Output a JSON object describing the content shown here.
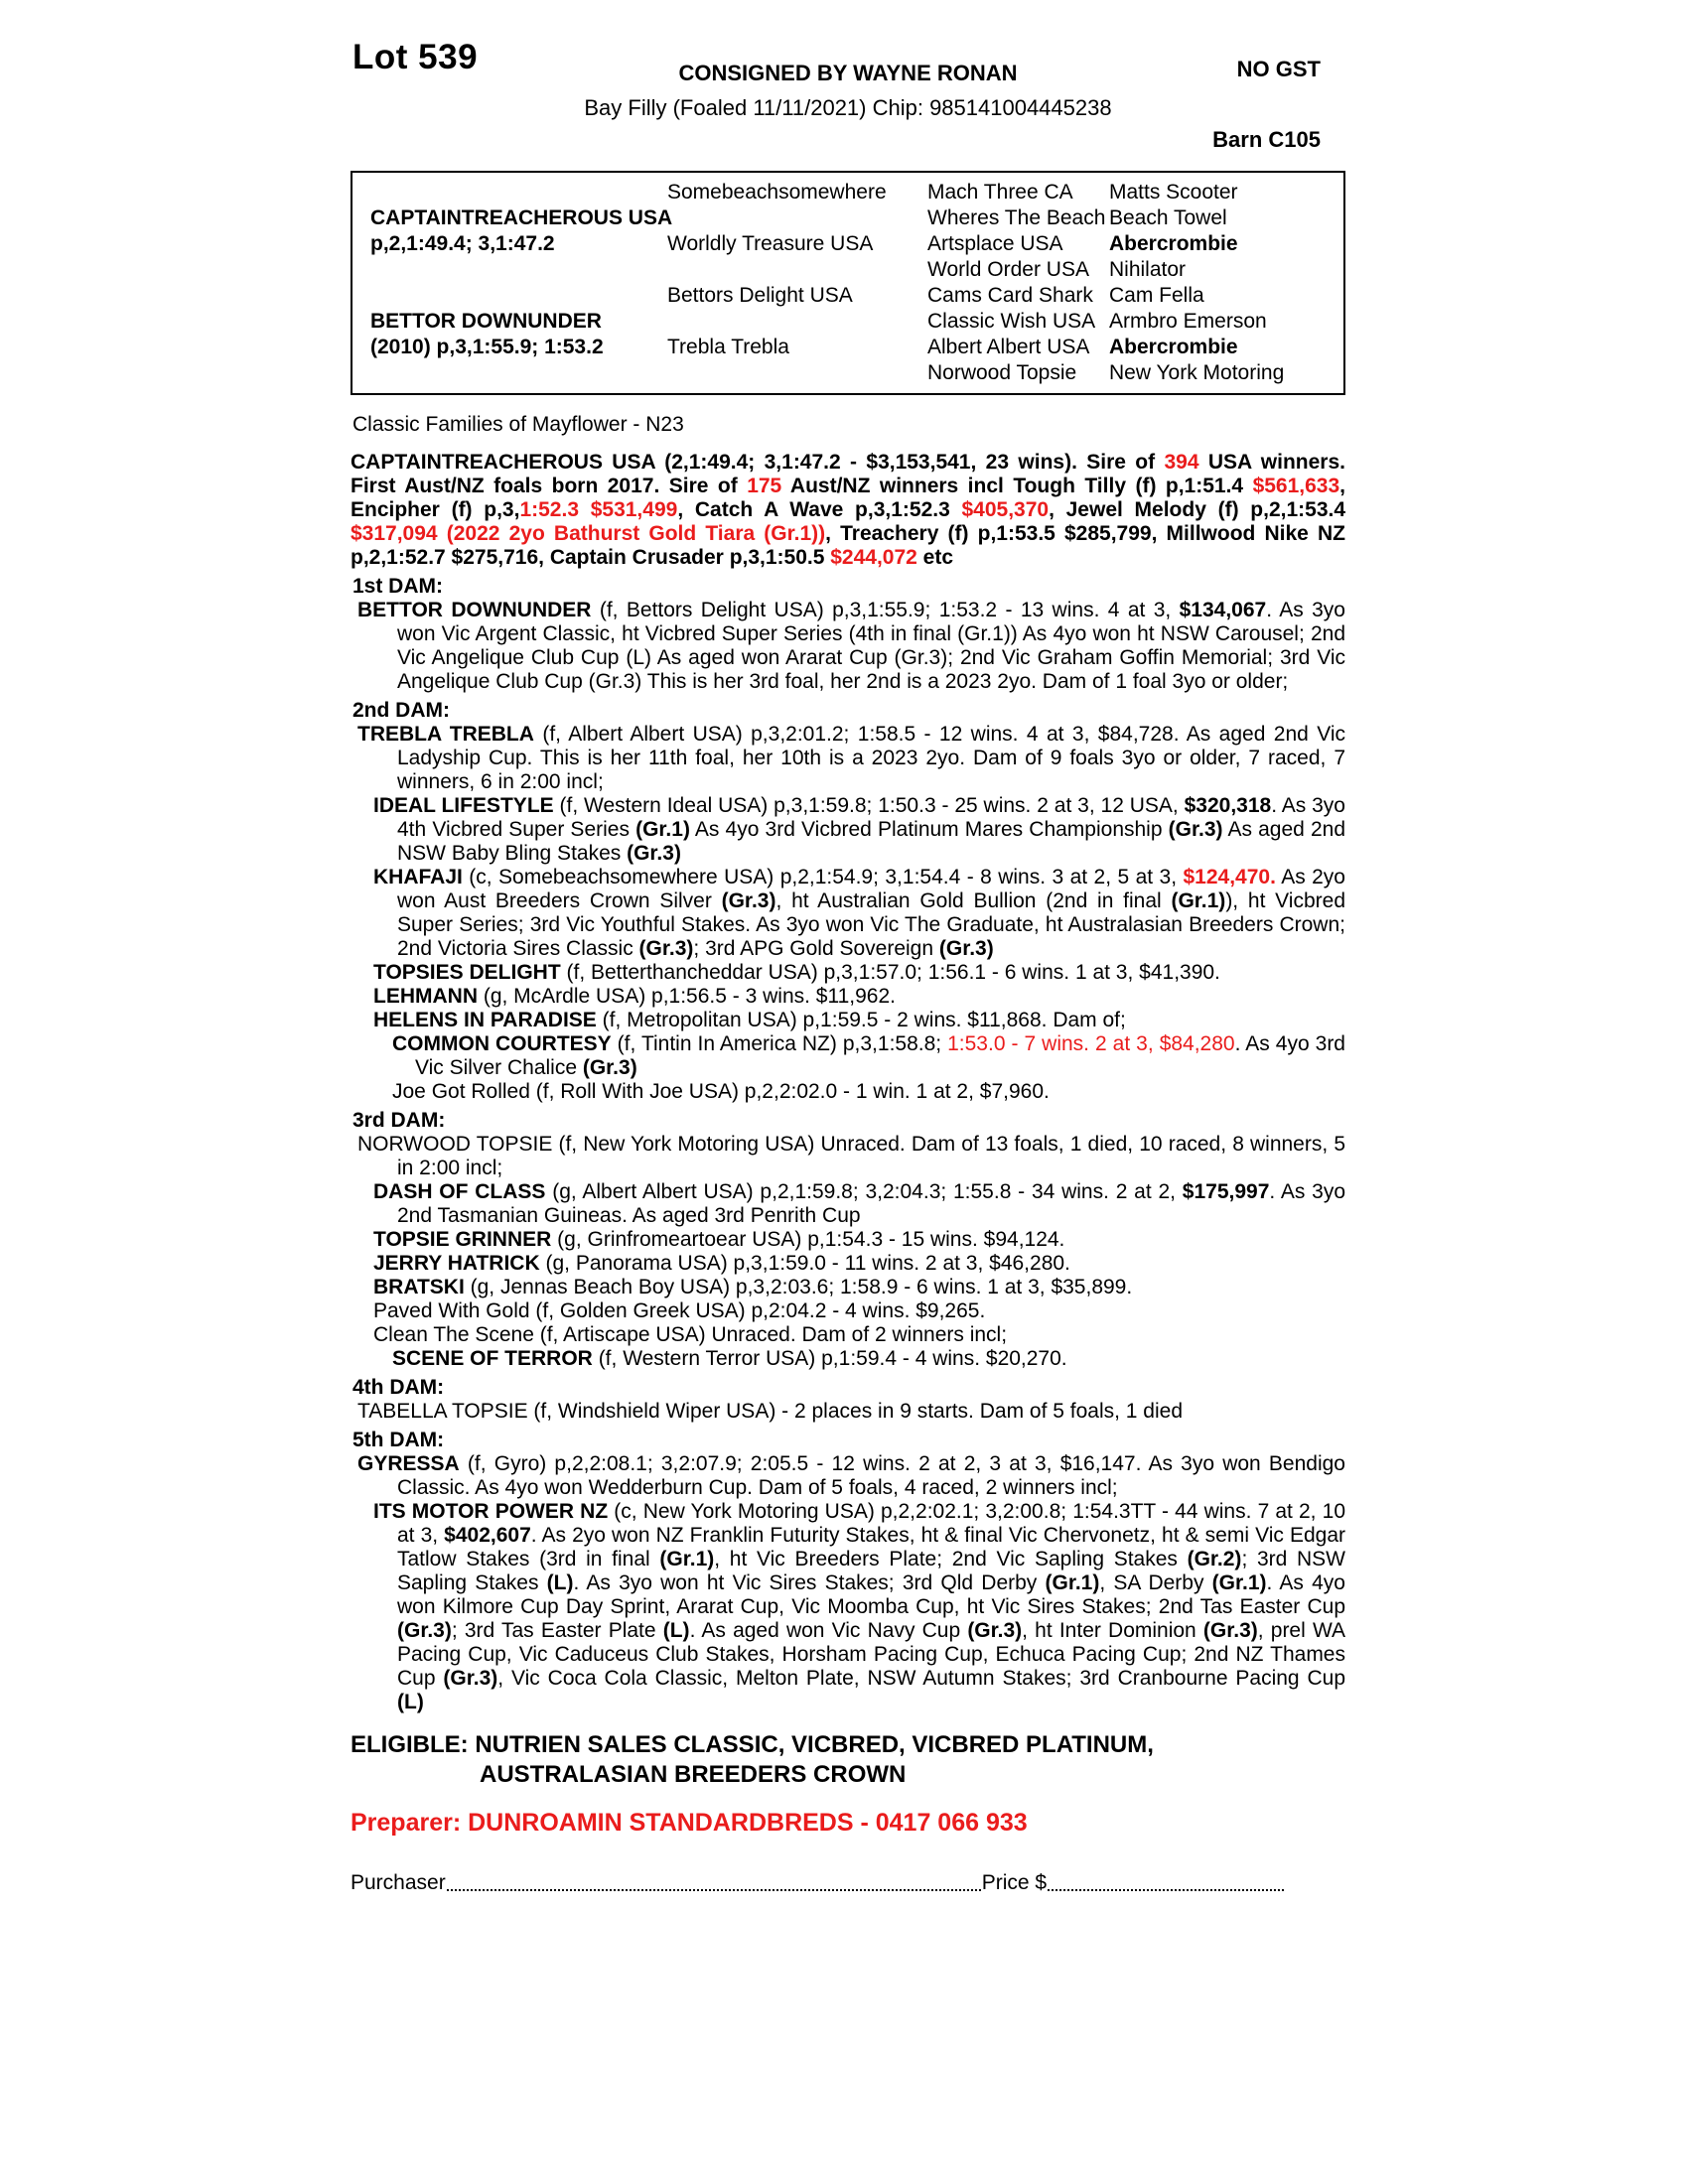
{
  "colors": {
    "accent_red": "#ea1c1c",
    "text": "#000000",
    "background": "#ffffff"
  },
  "header": {
    "lot": "Lot 539",
    "consigned": "CONSIGNED BY WAYNE RONAN",
    "no_gst": "NO GST",
    "subtitle": "Bay Filly (Foaled 11/11/2021) Chip: 985141004445238",
    "barn": "Barn C105"
  },
  "pedigree_table": {
    "rows": [
      {
        "cells": [
          {
            "t": ""
          },
          {
            "t": "Somebeachsomewhere"
          },
          {
            "t": "Mach Three CA"
          },
          {
            "t": "Matts Scooter"
          }
        ]
      },
      {
        "cells": [
          {
            "t": "CAPTAINTREACHEROUS USA",
            "b": true
          },
          {
            "t": ""
          },
          {
            "t": "Wheres The Beach"
          },
          {
            "t": "Beach Towel"
          }
        ]
      },
      {
        "cells": [
          {
            "t": "p,2,1:49.4; 3,1:47.2",
            "b": true
          },
          {
            "t": "Worldly Treasure USA"
          },
          {
            "t": "Artsplace USA"
          },
          {
            "t": "Abercrombie",
            "b": true
          }
        ]
      },
      {
        "cells": [
          {
            "t": ""
          },
          {
            "t": ""
          },
          {
            "t": "World Order USA"
          },
          {
            "t": "Nihilator"
          }
        ]
      },
      {
        "cells": [
          {
            "t": ""
          },
          {
            "t": "Bettors Delight USA"
          },
          {
            "t": "Cams Card Shark"
          },
          {
            "t": "Cam Fella"
          }
        ]
      },
      {
        "cells": [
          {
            "t": "BETTOR DOWNUNDER",
            "b": true
          },
          {
            "t": ""
          },
          {
            "t": "Classic Wish USA"
          },
          {
            "t": "Armbro Emerson"
          }
        ]
      },
      {
        "cells": [
          {
            "t": "(2010) p,3,1:55.9; 1:53.2",
            "b": true
          },
          {
            "t": "Trebla Trebla"
          },
          {
            "t": "Albert Albert USA"
          },
          {
            "t": "Abercrombie",
            "b": true
          }
        ]
      },
      {
        "cells": [
          {
            "t": ""
          },
          {
            "t": ""
          },
          {
            "t": "Norwood Topsie"
          },
          {
            "t": "New York Motoring"
          }
        ]
      }
    ]
  },
  "family_line": "Classic Families of Mayflower - N23",
  "body": {
    "blocks": [
      {
        "cls": "sire",
        "name": "sire-paragraph",
        "seg": [
          {
            "t": "CAPTAINTREACHEROUS USA (2,1:49.4; 3,1:47.2 - $3,153,541, 23 wins). Sire of ",
            "b": true
          },
          {
            "t": "394",
            "b": true,
            "r": true
          },
          {
            "t": " USA winners. First Aust/NZ foals born 2017. Sire of ",
            "b": true
          },
          {
            "t": "175",
            "b": true,
            "r": true
          },
          {
            "t": " Aust/NZ winners incl Tough Tilly (f) p,1:51.4 ",
            "b": true
          },
          {
            "t": "$561,633",
            "b": true,
            "r": true
          },
          {
            "t": ", Encipher (f) p,3,",
            "b": true
          },
          {
            "t": "1:52.3 $531,499",
            "b": true,
            "r": true
          },
          {
            "t": ", Catch A Wave p,3,1:52.3 ",
            "b": true
          },
          {
            "t": "$405,370",
            "b": true,
            "r": true
          },
          {
            "t": ", Jewel Melody (f) p,2,1:53.4 ",
            "b": true
          },
          {
            "t": "$317,094 (2022 2yo Bathurst Gold Tiara (Gr.1))",
            "b": true,
            "r": true
          },
          {
            "t": ", Treachery (f) p,1:53.5 $285,799, Millwood Nike NZ p,2,1:52.7 $275,716, Captain Crusader p,3,1:50.5 ",
            "b": true
          },
          {
            "t": "$244,072",
            "b": true,
            "r": true
          },
          {
            "t": " etc",
            "b": true
          }
        ]
      },
      {
        "cls": "hd",
        "name": "dam1-heading",
        "seg": [
          {
            "t": "1st DAM:",
            "b": true
          }
        ]
      },
      {
        "cls": "lv1",
        "name": "bettor-downunder",
        "seg": [
          {
            "t": "BETTOR DOWNUNDER",
            "b": true
          },
          {
            "t": " (f, Bettors Delight USA) p,3,1:55.9; 1:53.2 - 13 wins. 4 at 3, "
          },
          {
            "t": "$134,067",
            "b": true
          },
          {
            "t": ". As 3yo won Vic Argent Classic, ht Vicbred Super Series (4th in final (Gr.1)) As 4yo won ht NSW Carousel; 2nd Vic Angelique Club Cup (L) As aged won Ararat Cup (Gr.3); 2nd Vic Graham Goffin Memorial; 3rd Vic Angelique Club Cup (Gr.3) This is her 3rd foal, her 2nd is a 2023 2yo. Dam of 1 foal 3yo or older;"
          }
        ]
      },
      {
        "cls": "hd",
        "name": "dam2-heading",
        "seg": [
          {
            "t": "2nd DAM:",
            "b": true
          }
        ]
      },
      {
        "cls": "lv1",
        "name": "trebla-trebla",
        "seg": [
          {
            "t": "TREBLA TREBLA",
            "b": true
          },
          {
            "t": " (f, Albert Albert USA) p,3,2:01.2; 1:58.5 - 12 wins. 4 at 3, $84,728. As aged 2nd Vic Ladyship Cup. This is her 11th foal, her 10th is a 2023 2yo. Dam of 9 foals 3yo or older, 7 raced, 7 winners, 6 in 2:00 incl;"
          }
        ]
      },
      {
        "cls": "lv2",
        "name": "ideal-lifestyle",
        "seg": [
          {
            "t": "IDEAL LIFESTYLE",
            "b": true
          },
          {
            "t": " (f, Western Ideal USA) p,3,1:59.8; 1:50.3 - 25 wins. 2 at 3, 12 USA, "
          },
          {
            "t": "$320,318",
            "b": true
          },
          {
            "t": ". As 3yo 4th Vicbred Super Series "
          },
          {
            "t": "(Gr.1)",
            "b": true
          },
          {
            "t": " As 4yo 3rd Vicbred Platinum Mares Championship "
          },
          {
            "t": "(Gr.3)",
            "b": true
          },
          {
            "t": " As aged 2nd NSW Baby Bling Stakes "
          },
          {
            "t": "(Gr.3)",
            "b": true
          }
        ]
      },
      {
        "cls": "lv2",
        "name": "khafaji",
        "seg": [
          {
            "t": "KHAFAJI",
            "b": true
          },
          {
            "t": " (c, Somebeachsomewhere USA) p,2,1:54.9; 3,1:54.4 - 8 wins. 3 at 2, 5 at 3, "
          },
          {
            "t": "$124,470.",
            "b": true,
            "r": true
          },
          {
            "t": " As 2yo won Aust Breeders Crown Silver "
          },
          {
            "t": "(Gr.3)",
            "b": true
          },
          {
            "t": ", ht Australian Gold Bullion (2nd in final "
          },
          {
            "t": "(Gr.1)",
            "b": true
          },
          {
            "t": "), ht Vicbred Super Series; 3rd Vic Youthful Stakes. As 3yo won Vic The Graduate, ht Australasian Breeders Crown; 2nd Victoria Sires Classic "
          },
          {
            "t": "(Gr.3)",
            "b": true
          },
          {
            "t": "; 3rd APG Gold Sovereign "
          },
          {
            "t": "(Gr.3)",
            "b": true
          }
        ]
      },
      {
        "cls": "lv2",
        "name": "topsies-delight",
        "seg": [
          {
            "t": "TOPSIES DELIGHT",
            "b": true
          },
          {
            "t": " (f, Betterthancheddar USA) p,3,1:57.0; 1:56.1 - 6 wins. 1 at 3, $41,390."
          }
        ]
      },
      {
        "cls": "lv2",
        "name": "lehmann",
        "seg": [
          {
            "t": "LEHMANN",
            "b": true
          },
          {
            "t": " (g, McArdle USA) p,1:56.5 - 3 wins. $11,962."
          }
        ]
      },
      {
        "cls": "lv2",
        "name": "helens-in-paradise",
        "seg": [
          {
            "t": "HELENS IN PARADISE",
            "b": true
          },
          {
            "t": " (f, Metropolitan USA) p,1:59.5 - 2 wins. $11,868. Dam of;"
          }
        ]
      },
      {
        "cls": "lv3",
        "name": "common-courtesy",
        "seg": [
          {
            "t": "COMMON COURTESY",
            "b": true
          },
          {
            "t": " (f, Tintin In America NZ) p,3,1:58.8; "
          },
          {
            "t": "1:53.0 - 7 wins. 2 at 3, $84,280",
            "r": true
          },
          {
            "t": ". As 4yo 3rd Vic Silver Chalice "
          },
          {
            "t": "(Gr.3)",
            "b": true
          }
        ]
      },
      {
        "cls": "lv3",
        "name": "joe-got-rolled",
        "seg": [
          {
            "t": "Joe Got Rolled (f, Roll With Joe USA) p,2,2:02.0 - 1 win. 1 at 2, $7,960."
          }
        ]
      },
      {
        "cls": "hd",
        "name": "dam3-heading",
        "seg": [
          {
            "t": "3rd DAM:",
            "b": true
          }
        ]
      },
      {
        "cls": "lv1",
        "name": "norwood-topsie",
        "seg": [
          {
            "t": "NORWOOD TOPSIE (f, New York Motoring USA) Unraced. Dam of 13 foals, 1 died, 10 raced, 8 winners, 5 in 2:00 incl;"
          }
        ]
      },
      {
        "cls": "lv2",
        "name": "dash-of-class",
        "seg": [
          {
            "t": "DASH OF CLASS",
            "b": true
          },
          {
            "t": " (g, Albert Albert USA) p,2,1:59.8; 3,2:04.3; 1:55.8 - 34 wins. 2 at 2, "
          },
          {
            "t": "$175,997",
            "b": true
          },
          {
            "t": ". As 3yo 2nd Tasmanian Guineas. As aged 3rd Penrith Cup"
          }
        ]
      },
      {
        "cls": "lv2",
        "name": "topsie-grinner",
        "seg": [
          {
            "t": "TOPSIE GRINNER",
            "b": true
          },
          {
            "t": " (g, Grinfromeartoear USA) p,1:54.3 - 15 wins. $94,124."
          }
        ]
      },
      {
        "cls": "lv2",
        "name": "jerry-hatrick",
        "seg": [
          {
            "t": "JERRY HATRICK",
            "b": true
          },
          {
            "t": " (g, Panorama USA) p,3,1:59.0 - 11 wins. 2 at 3, $46,280."
          }
        ]
      },
      {
        "cls": "lv2",
        "name": "bratski",
        "seg": [
          {
            "t": "BRATSKI",
            "b": true
          },
          {
            "t": " (g, Jennas Beach Boy USA) p,3,2:03.6; 1:58.9 - 6 wins. 1 at 3, $35,899."
          }
        ]
      },
      {
        "cls": "lv2",
        "name": "paved-with-gold",
        "seg": [
          {
            "t": "Paved With Gold (f, Golden Greek USA) p,2:04.2 - 4 wins. $9,265."
          }
        ]
      },
      {
        "cls": "lv2",
        "name": "clean-the-scene",
        "seg": [
          {
            "t": "Clean The Scene (f, Artiscape USA) Unraced. Dam of 2 winners incl;"
          }
        ]
      },
      {
        "cls": "lv3",
        "name": "scene-of-terror",
        "seg": [
          {
            "t": "SCENE OF TERROR",
            "b": true
          },
          {
            "t": " (f, Western Terror USA) p,1:59.4 - 4 wins. $20,270."
          }
        ]
      },
      {
        "cls": "hd",
        "name": "dam4-heading",
        "seg": [
          {
            "t": "4th DAM:",
            "b": true
          }
        ]
      },
      {
        "cls": "lv1",
        "name": "tabella-topsie",
        "seg": [
          {
            "t": "TABELLA TOPSIE (f, Windshield Wiper USA) - 2 places in 9 starts. Dam of 5 foals, 1 died"
          }
        ]
      },
      {
        "cls": "hd",
        "name": "dam5-heading",
        "seg": [
          {
            "t": "5th DAM:",
            "b": true
          }
        ]
      },
      {
        "cls": "lv1",
        "name": "gyressa",
        "seg": [
          {
            "t": "GYRESSA",
            "b": true
          },
          {
            "t": " (f, Gyro) p,2,2:08.1; 3,2:07.9; 2:05.5 - 12 wins. 2 at 2, 3 at 3, $16,147. As 3yo won Bendigo Classic. As 4yo won Wedderburn Cup. Dam of 5 foals, 4 raced, 2 winners incl;"
          }
        ]
      },
      {
        "cls": "lv2",
        "name": "its-motor-power",
        "seg": [
          {
            "t": "ITS MOTOR POWER NZ",
            "b": true
          },
          {
            "t": " (c, New York Motoring USA) p,2,2:02.1; 3,2:00.8; 1:54.3TT - 44 wins. 7 at 2, 10 at 3, "
          },
          {
            "t": "$402,607",
            "b": true
          },
          {
            "t": ". As 2yo won NZ Franklin Futurity Stakes, ht & final Vic Chervonetz, ht & semi Vic Edgar Tatlow Stakes (3rd in final "
          },
          {
            "t": "(Gr.1)",
            "b": true
          },
          {
            "t": ", ht Vic Breeders Plate; 2nd Vic Sapling Stakes "
          },
          {
            "t": "(Gr.2)",
            "b": true
          },
          {
            "t": "; 3rd NSW Sapling Stakes "
          },
          {
            "t": "(L)",
            "b": true
          },
          {
            "t": ". As 3yo won ht Vic Sires Stakes; 3rd Qld Derby "
          },
          {
            "t": "(Gr.1)",
            "b": true
          },
          {
            "t": ", SA Derby "
          },
          {
            "t": "(Gr.1)",
            "b": true
          },
          {
            "t": ". As 4yo won Kilmore Cup Day Sprint, Ararat Cup, Vic Moomba Cup, ht Vic Sires Stakes; 2nd Tas Easter Cup "
          },
          {
            "t": "(Gr.3)",
            "b": true
          },
          {
            "t": "; 3rd Tas Easter Plate "
          },
          {
            "t": "(L)",
            "b": true
          },
          {
            "t": ". As aged won Vic Navy Cup "
          },
          {
            "t": "(Gr.3)",
            "b": true
          },
          {
            "t": ", ht Inter Dominion "
          },
          {
            "t": "(Gr.3)",
            "b": true
          },
          {
            "t": ", prel WA Pacing Cup, Vic Caduceus Club Stakes, Horsham Pacing Cup, Echuca Pacing Cup; 2nd NZ Thames Cup "
          },
          {
            "t": "(Gr.3)",
            "b": true
          },
          {
            "t": ", Vic Coca Cola Classic, Melton Plate, NSW Autumn Stakes; 3rd Cranbourne Pacing Cup "
          },
          {
            "t": "(L)",
            "b": true
          }
        ]
      }
    ]
  },
  "eligible": {
    "line1": "ELIGIBLE: NUTRIEN SALES CLASSIC, VICBRED, VICBRED PLATINUM,",
    "line2": "AUSTRALASIAN BREEDERS CROWN"
  },
  "preparer": {
    "text": "Preparer: DUNROAMIN STANDARDBREDS - 0417 066 933"
  },
  "purchaser": {
    "label": "Purchaser",
    "price_label": "Price $"
  }
}
